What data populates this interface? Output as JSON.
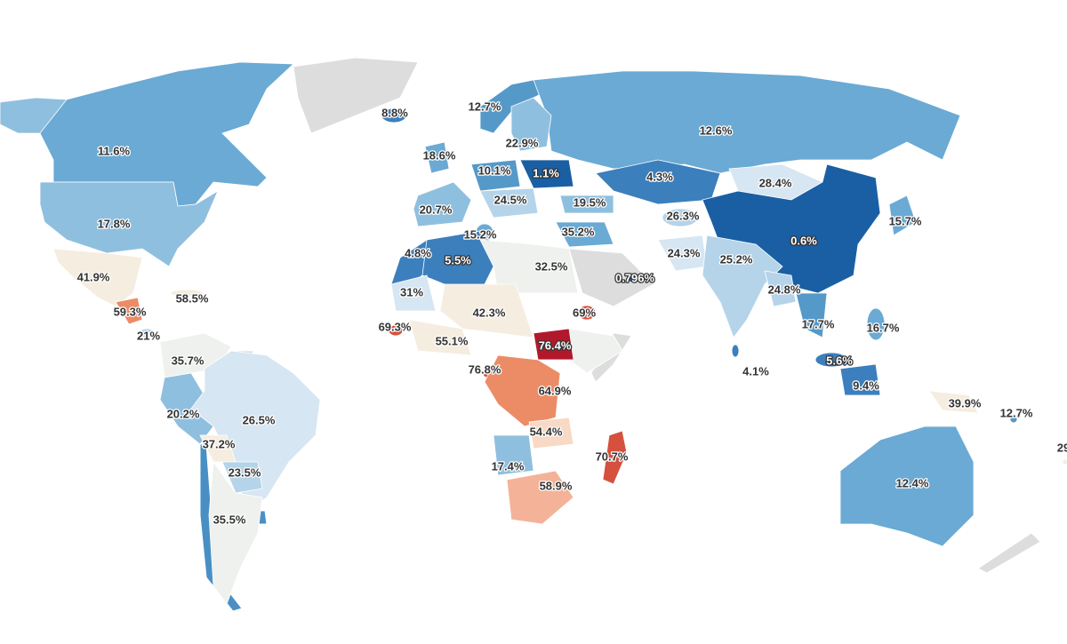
{
  "map": {
    "regions": [
      {
        "label": "8.8%",
        "color": "#3c7fbd"
      },
      {
        "label": "12.7%",
        "color": "#5599c9"
      },
      {
        "label": "11.6%",
        "color": "#6aaad4"
      },
      {
        "label": "12.6%",
        "color": "#6aaad4"
      },
      {
        "label": "22.9%",
        "color": "#8fbfdf"
      },
      {
        "label": "18.6%",
        "color": "#6aaad4"
      },
      {
        "label": "10.1%",
        "color": "#5599c9"
      },
      {
        "label": "1.1%",
        "color": "#1a5fa3"
      },
      {
        "label": "4.3%",
        "color": "#3c7fbd"
      },
      {
        "label": "28.4%",
        "color": "#d6e6f2"
      },
      {
        "label": "17.8%",
        "color": "#8fbfdf"
      },
      {
        "label": "24.5%",
        "color": "#b5d4ea"
      },
      {
        "label": "20.7%",
        "color": "#8fbfdf"
      },
      {
        "label": "19.5%",
        "color": "#8fbfdf"
      },
      {
        "label": "26.3%",
        "color": "#b5d4ea"
      },
      {
        "label": "15.7%",
        "color": "#6aaad4"
      },
      {
        "label": "15.2%",
        "color": "#6aaad4"
      },
      {
        "label": "35.2%",
        "color": "#6aaad4"
      },
      {
        "label": "0.6%",
        "color": "#1a5fa3"
      },
      {
        "label": "4.8%",
        "color": "#3c7fbd"
      },
      {
        "label": "5.5%",
        "color": "#3c7fbd"
      },
      {
        "label": "24.3%",
        "color": "#d6e6f2"
      },
      {
        "label": "25.2%",
        "color": "#b5d4ea"
      },
      {
        "label": "41.9%",
        "color": "#f5ede0"
      },
      {
        "label": "32.5%",
        "color": "#eef1ee"
      },
      {
        "label": "0.796%",
        "color": "#1a5fa3"
      },
      {
        "label": "58.5%",
        "color": "#f5ede0"
      },
      {
        "label": "31%",
        "color": "#d6e6f2"
      },
      {
        "label": "24.8%",
        "color": "#b5d4ea"
      },
      {
        "label": "59.3%",
        "color": "#ec8c66"
      },
      {
        "label": "42.3%",
        "color": "#f5ede0"
      },
      {
        "label": "69%",
        "color": "#d6503e"
      },
      {
        "label": "69.3%",
        "color": "#d6503e"
      },
      {
        "label": "21%",
        "color": "#b5d4ea"
      },
      {
        "label": "17.7%",
        "color": "#5599c9"
      },
      {
        "label": "16.7%",
        "color": "#6aaad4"
      },
      {
        "label": "55.1%",
        "color": "#f5ede0"
      },
      {
        "label": "76.4%",
        "color": "#b2182b"
      },
      {
        "label": "35.7%",
        "color": "#eef1ee"
      },
      {
        "label": "5.6%",
        "color": "#3c7fbd"
      },
      {
        "label": "76.8%",
        "color": "#d6503e"
      },
      {
        "label": "4.1%",
        "color": "#3c7fbd"
      },
      {
        "label": "9.4%",
        "color": "#3c7fbd"
      },
      {
        "label": "64.9%",
        "color": "#ec8c66"
      },
      {
        "label": "20.2%",
        "color": "#8fbfdf"
      },
      {
        "label": "26.5%",
        "color": "#d6e6f2"
      },
      {
        "label": "39.9%",
        "color": "#f5ede0"
      },
      {
        "label": "12.7%",
        "color": "#5599c9"
      },
      {
        "label": "54.4%",
        "color": "#f8d9c5"
      },
      {
        "label": "37.2%",
        "color": "#f5ede0"
      },
      {
        "label": "70.7%",
        "color": "#d6503e"
      },
      {
        "label": "17.4%",
        "color": "#8fbfdf"
      },
      {
        "label": "23.5%",
        "color": "#b5d4ea"
      },
      {
        "label": "58.9%",
        "color": "#f4b299"
      },
      {
        "label": "12.4%",
        "color": "#6aaad4"
      },
      {
        "label": "35.5%",
        "color": "#eef1ee"
      },
      {
        "label": "29",
        "color": "#f5ede0"
      }
    ]
  }
}
